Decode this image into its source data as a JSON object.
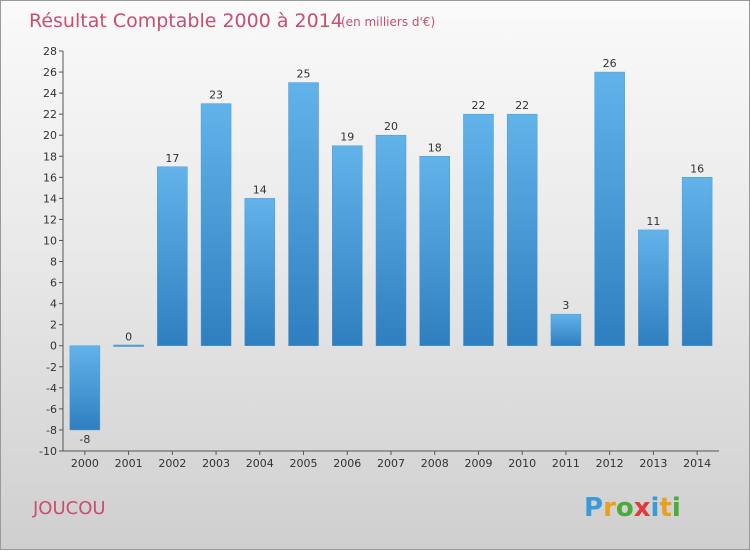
{
  "chart_data": {
    "type": "bar",
    "title": "Résultat Comptable 2000 à 2014",
    "subtitle": "(en milliers d'€)",
    "categories": [
      "2000",
      "2001",
      "2002",
      "2003",
      "2004",
      "2005",
      "2006",
      "2007",
      "2008",
      "2009",
      "2010",
      "2011",
      "2012",
      "2013",
      "2014"
    ],
    "values": [
      -8,
      0,
      17,
      23,
      14,
      25,
      19,
      20,
      18,
      22,
      22,
      3,
      26,
      11,
      16
    ],
    "value_labels": [
      "-8",
      "0",
      "17",
      "23",
      "14",
      "25",
      "19",
      "20",
      "18",
      "22",
      "22",
      "3",
      "26",
      "11",
      "16"
    ],
    "ylim": [
      -10,
      28
    ],
    "yticks": [
      "28",
      "26",
      "24",
      "22",
      "20",
      "18",
      "16",
      "14",
      "12",
      "10",
      "8",
      "6",
      "4",
      "2",
      "0",
      "-2",
      "-4",
      "-6",
      "-8",
      "-10"
    ],
    "grid": false,
    "bar_color_top": "#62b3ea",
    "bar_color_bottom": "#2f7fc0"
  },
  "place_name": "JOUCOU",
  "logo": {
    "text": "Proxiti",
    "colors": [
      "#3a9bd8",
      "#e8a020",
      "#4aaa3a",
      "#e03a3a",
      "#3a9bd8",
      "#e8a020",
      "#4aaa3a"
    ]
  },
  "colors": {
    "accent": "#c84f6e",
    "axis": "#555555"
  }
}
